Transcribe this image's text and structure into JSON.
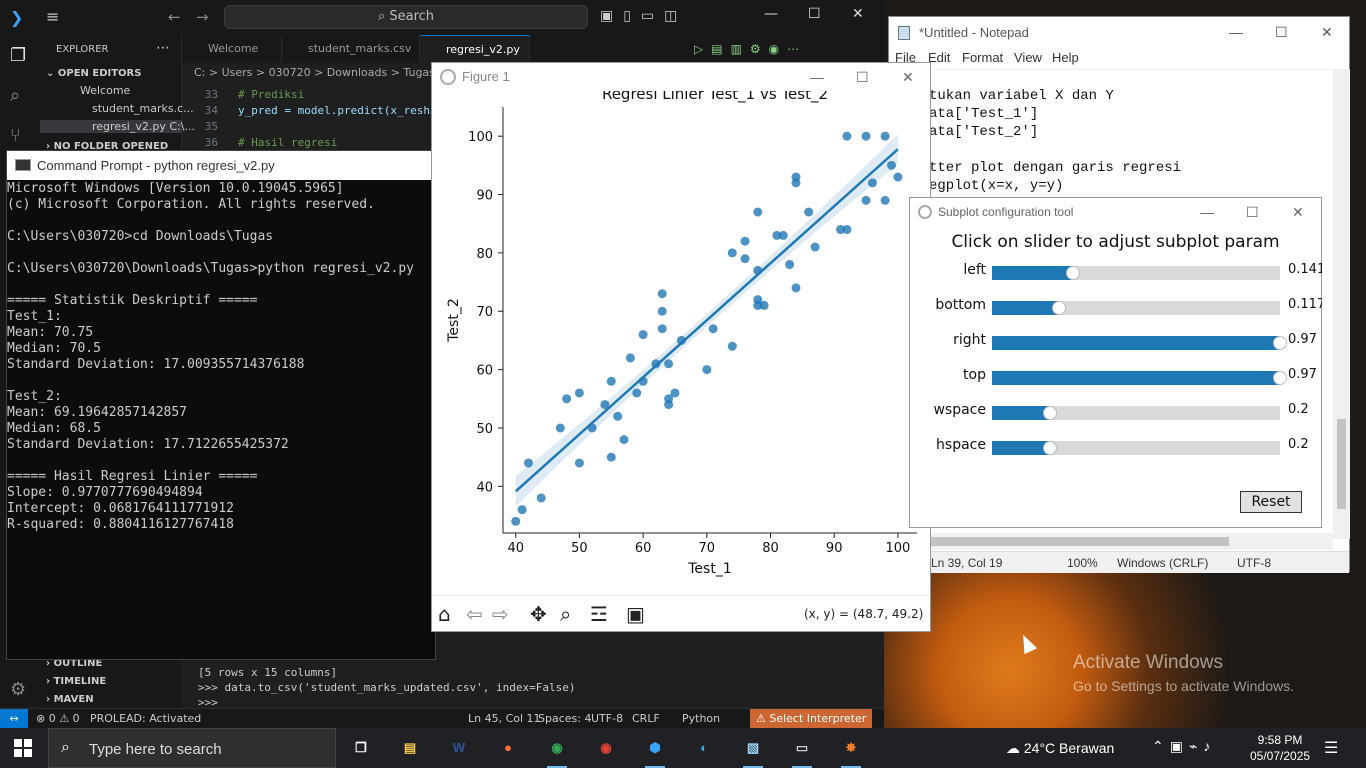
{
  "vscode": {
    "search_placeholder": "Search",
    "explorer_label": "EXPLORER",
    "open_editors_label": "OPEN EDITORS",
    "no_folder_label": "NO FOLDER OPENED",
    "open_files": [
      "Welcome",
      "student_marks.c...",
      "regresi_v2.py C:\\..."
    ],
    "tabs": [
      "Welcome",
      "student_marks.csv",
      "regresi_v2.py"
    ],
    "breadcrumb": "C: > Users > 030720 > Downloads > Tugas > ◆",
    "code_lines": [
      {
        "num": "33",
        "text": "# Prediksi",
        "kind": "comment"
      },
      {
        "num": "34",
        "text": "y_pred = model.predict(x_resha",
        "kind": "code"
      },
      {
        "num": "35",
        "text": "",
        "kind": "code"
      },
      {
        "num": "36",
        "text": "# Hasil regresi",
        "kind": "comment"
      }
    ],
    "panel_items": [
      "OUTLINE",
      "TIMELINE",
      "MAVEN"
    ],
    "terminal_lines": [
      "[5 rows x 15 columns]",
      ">>> data.to_csv('student_marks_updated.csv', index=False)",
      ">>> "
    ],
    "status": {
      "errors": "⊗ 0 ⚠ 0",
      "prolead": "PROLEAD: Activated",
      "position": "Ln 45, Col 11",
      "spaces": "Spaces: 4",
      "encoding": "UTF-8",
      "eol": "CRLF",
      "language": "Python",
      "interpreter": "Select Interpreter"
    }
  },
  "cmd": {
    "title": "Command Prompt - python  regresi_v2.py",
    "lines": [
      "Microsoft Windows [Version 10.0.19045.5965]",
      "(c) Microsoft Corporation. All rights reserved.",
      "",
      "C:\\Users\\030720>cd Downloads\\Tugas",
      "",
      "C:\\Users\\030720\\Downloads\\Tugas>python regresi_v2.py",
      "",
      "===== Statistik Deskriptif =====",
      "Test_1:",
      "Mean: 70.75",
      "Median: 70.5",
      "Standard Deviation: 17.009355714376188",
      "",
      "Test_2:",
      "Mean: 69.19642857142857",
      "Median: 68.5",
      "Standard Deviation: 17.7122655425372",
      "",
      "===== Hasil Regresi Linier =====",
      "Slope: 0.9770777690494894",
      "Intercept: 0.0681764111771912",
      "R-squared: 0.8804116127767418"
    ]
  },
  "notepad": {
    "title": "*Untitled - Notepad",
    "menu": [
      "File",
      "Edit",
      "Format",
      "View",
      "Help"
    ],
    "lines": [
      "tukan variabel X dan Y",
      "ata['Test_1']",
      "ata['Test_2']",
      "",
      "tter plot dengan garis regresi",
      "egplot(x=x, y=y)"
    ],
    "status": {
      "position": "Ln 39, Col 19",
      "zoom": "100%",
      "eol": "Windows (CRLF)",
      "encoding": "UTF-8"
    }
  },
  "figure": {
    "window_title": "Figure 1",
    "coords_readout": "(x, y) = (48.7, 49.2)",
    "toolbar_icons": [
      "home-icon",
      "back-icon",
      "forward-icon",
      "pan-icon",
      "zoom-icon",
      "configure-icon",
      "save-icon"
    ]
  },
  "chart_data": {
    "type": "scatter",
    "title": "Regresi Linier Test_1 vs Test_2",
    "xlabel": "Test_1",
    "ylabel": "Test_2",
    "xlim": [
      38,
      103
    ],
    "ylim": [
      32,
      105
    ],
    "xticks": [
      40,
      50,
      60,
      70,
      80,
      90,
      100
    ],
    "yticks": [
      40,
      50,
      60,
      70,
      80,
      90,
      100
    ],
    "point_color": "#1f77b4",
    "grid": false,
    "points": [
      [
        40,
        34
      ],
      [
        41,
        36
      ],
      [
        42,
        44
      ],
      [
        44,
        38
      ],
      [
        47,
        50
      ],
      [
        48,
        55
      ],
      [
        50,
        56
      ],
      [
        50,
        44
      ],
      [
        52,
        50
      ],
      [
        54,
        54
      ],
      [
        55,
        45
      ],
      [
        55,
        58
      ],
      [
        56,
        52
      ],
      [
        57,
        48
      ],
      [
        58,
        62
      ],
      [
        59,
        56
      ],
      [
        60,
        58
      ],
      [
        60,
        66
      ],
      [
        62,
        61
      ],
      [
        63,
        73
      ],
      [
        63,
        70
      ],
      [
        63,
        67
      ],
      [
        64,
        61
      ],
      [
        64,
        55
      ],
      [
        64,
        54
      ],
      [
        65,
        56
      ],
      [
        66,
        65
      ],
      [
        70,
        60
      ],
      [
        71,
        67
      ],
      [
        74,
        64
      ],
      [
        74,
        80
      ],
      [
        76,
        82
      ],
      [
        76,
        79
      ],
      [
        78,
        87
      ],
      [
        78,
        77
      ],
      [
        78,
        72
      ],
      [
        78,
        71
      ],
      [
        79,
        71
      ],
      [
        81,
        83
      ],
      [
        82,
        83
      ],
      [
        83,
        78
      ],
      [
        84,
        93
      ],
      [
        84,
        92
      ],
      [
        84,
        74
      ],
      [
        86,
        87
      ],
      [
        87,
        81
      ],
      [
        91,
        84
      ],
      [
        92,
        84
      ],
      [
        92,
        100
      ],
      [
        95,
        100
      ],
      [
        95,
        89
      ],
      [
        96,
        92
      ],
      [
        98,
        100
      ],
      [
        98,
        89
      ],
      [
        99,
        95
      ],
      [
        100,
        93
      ]
    ],
    "regression_line": {
      "x": [
        40,
        100
      ],
      "y": [
        39.15,
        97.77
      ]
    },
    "ci_halfwidth_ends": 2.6,
    "ci_halfwidth_mid": 1.1
  },
  "subplot_tool": {
    "title": "Subplot configuration tool",
    "heading": "Click on slider to adjust subplot param",
    "sliders": [
      {
        "label": "left",
        "value": 0.141,
        "display": "0.141",
        "max": 0.5
      },
      {
        "label": "bottom",
        "value": 0.117,
        "display": "0.117",
        "max": 0.5
      },
      {
        "label": "right",
        "value": 0.97,
        "display": "0.97",
        "max": 0.97
      },
      {
        "label": "top",
        "value": 0.97,
        "display": "0.97",
        "max": 0.97
      },
      {
        "label": "wspace",
        "value": 0.2,
        "display": "0.2",
        "max": 1
      },
      {
        "label": "hspace",
        "value": 0.2,
        "display": "0.2",
        "max": 1
      }
    ],
    "reset_label": "Reset"
  },
  "desktop": {
    "watermark_title": "Activate Windows",
    "watermark_sub": "Go to Settings to activate Windows."
  },
  "taskbar": {
    "search_placeholder": "Type here to search",
    "weather": "24°C  Berawan",
    "time": "9:58 PM",
    "date": "05/07/2025",
    "apps": [
      {
        "name": "task-view",
        "glyph": "❐",
        "color": "#ffffff"
      },
      {
        "name": "file-explorer",
        "glyph": "▤",
        "color": "#f2c94c"
      },
      {
        "name": "word",
        "glyph": "W",
        "color": "#2b579a"
      },
      {
        "name": "firefox",
        "glyph": "●",
        "color": "#ff7139"
      },
      {
        "name": "chrome",
        "glyph": "◉",
        "color": "#34a853"
      },
      {
        "name": "chrome-2",
        "glyph": "◉",
        "color": "#ea4335"
      },
      {
        "name": "vscode",
        "glyph": "⬢",
        "color": "#3ba3f5"
      },
      {
        "name": "edge",
        "glyph": "◐",
        "color": "#2fb0d8"
      },
      {
        "name": "notepad",
        "glyph": "▧",
        "color": "#9fd3f5"
      },
      {
        "name": "command-prompt",
        "glyph": "▭",
        "color": "#cccccc"
      },
      {
        "name": "matplotlib",
        "glyph": "✸",
        "color": "#f08030"
      }
    ]
  }
}
